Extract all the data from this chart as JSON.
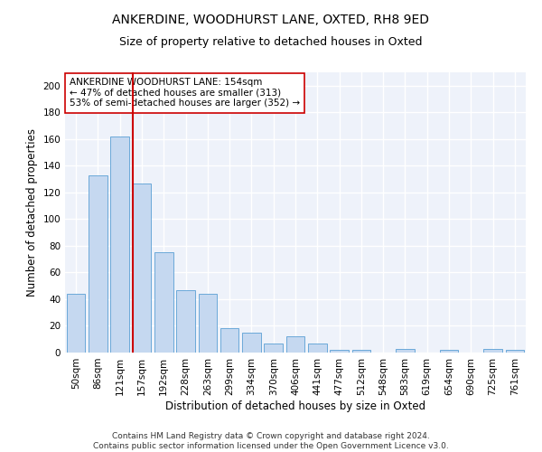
{
  "title": "ANKERDINE, WOODHURST LANE, OXTED, RH8 9ED",
  "subtitle": "Size of property relative to detached houses in Oxted",
  "xlabel": "Distribution of detached houses by size in Oxted",
  "ylabel": "Number of detached properties",
  "categories": [
    "50sqm",
    "86sqm",
    "121sqm",
    "157sqm",
    "192sqm",
    "228sqm",
    "263sqm",
    "299sqm",
    "334sqm",
    "370sqm",
    "406sqm",
    "441sqm",
    "477sqm",
    "512sqm",
    "548sqm",
    "583sqm",
    "619sqm",
    "654sqm",
    "690sqm",
    "725sqm",
    "761sqm"
  ],
  "values": [
    44,
    133,
    162,
    127,
    75,
    47,
    44,
    18,
    15,
    7,
    12,
    7,
    2,
    2,
    0,
    3,
    0,
    2,
    0,
    3,
    2
  ],
  "bar_color": "#c5d8f0",
  "bar_edge_color": "#5a9fd4",
  "vline_x_index": 3,
  "vline_color": "#cc0000",
  "annotation_text": "ANKERDINE WOODHURST LANE: 154sqm\n← 47% of detached houses are smaller (313)\n53% of semi-detached houses are larger (352) →",
  "annotation_box_color": "#ffffff",
  "annotation_box_edge_color": "#cc0000",
  "ylim": [
    0,
    210
  ],
  "yticks": [
    0,
    20,
    40,
    60,
    80,
    100,
    120,
    140,
    160,
    180,
    200
  ],
  "footer_text": "Contains HM Land Registry data © Crown copyright and database right 2024.\nContains public sector information licensed under the Open Government Licence v3.0.",
  "background_color": "#eef2fa",
  "grid_color": "#ffffff",
  "title_fontsize": 10,
  "subtitle_fontsize": 9,
  "axis_label_fontsize": 8.5,
  "tick_fontsize": 7.5,
  "annotation_fontsize": 7.5,
  "footer_fontsize": 6.5
}
